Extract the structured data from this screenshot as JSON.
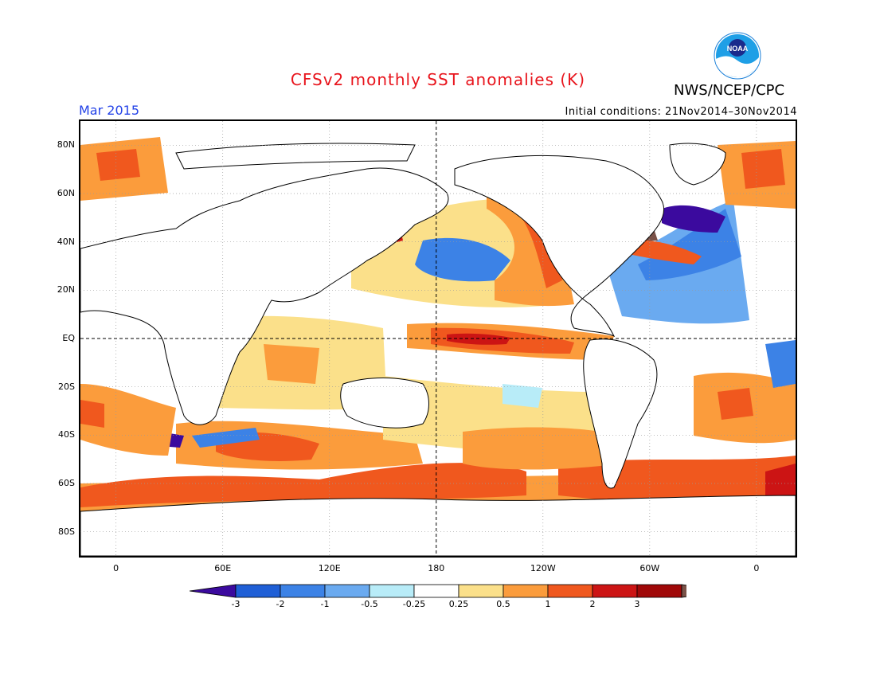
{
  "header": {
    "title": "CFSv2 monthly SST anomalies (K)",
    "month": "Mar 2015",
    "agency": "NWS/NCEP/CPC",
    "initial_conditions": "Initial conditions: 21Nov2014–30Nov2014",
    "logo_text": "NOAA"
  },
  "map": {
    "projection": "cylindrical",
    "lon_range": [
      -20,
      382
    ],
    "lat_range": [
      -90,
      90
    ],
    "y_axis_labels": [
      "80N",
      "60N",
      "40N",
      "20N",
      "EQ",
      "20S",
      "40S",
      "60S",
      "80S"
    ],
    "x_axis_labels": [
      "0",
      "60E",
      "120E",
      "180",
      "120W",
      "60W",
      "0"
    ],
    "reference_lines": [
      "EQ",
      "180"
    ],
    "land_color": "#ffffff"
  },
  "colorbar": {
    "labels": [
      "-3",
      "-2",
      "-1",
      "-0.5",
      "-0.25",
      "0.25",
      "0.5",
      "1",
      "2",
      "3"
    ],
    "colors": [
      "#3b0a9e",
      "#1f5fd6",
      "#3c82e6",
      "#6aaaf0",
      "#b8ecf8",
      "#ffffff",
      "#fbe08a",
      "#fb9c3c",
      "#f0581e",
      "#cc1414",
      "#a00808",
      "#7a5248"
    ],
    "extend": "both"
  },
  "colors": {
    "title": "#e8141c",
    "month": "#2443e8"
  }
}
